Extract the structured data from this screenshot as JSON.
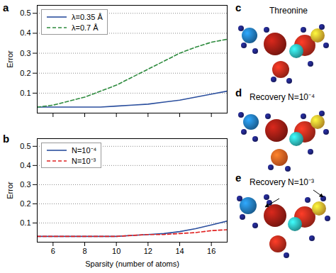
{
  "chart_data": [
    {
      "type": "line",
      "panel": "a",
      "y_label": "Error",
      "x": [
        5,
        6,
        7,
        8,
        9,
        10,
        11,
        12,
        13,
        14,
        15,
        16,
        17
      ],
      "series": [
        {
          "name": "λ=0.35 Å",
          "color": "#2b4f9e",
          "line_style": "solid",
          "values": [
            0.03,
            0.03,
            0.03,
            0.03,
            0.03,
            0.035,
            0.04,
            0.045,
            0.055,
            0.065,
            0.08,
            0.095,
            0.11
          ]
        },
        {
          "name": "λ=0.7 Å",
          "color": "#2e8b3e",
          "line_style": "dashed",
          "values": [
            0.03,
            0.04,
            0.06,
            0.08,
            0.11,
            0.14,
            0.18,
            0.22,
            0.26,
            0.3,
            0.33,
            0.355,
            0.37
          ]
        }
      ],
      "xlim": [
        5,
        17
      ],
      "xticks": [
        6,
        8,
        10,
        12,
        14,
        16
      ],
      "ylim": [
        0,
        0.54
      ],
      "yticks": [
        0.1,
        0.2,
        0.3,
        0.4,
        0.5
      ],
      "grid": "y",
      "legend": "top-left",
      "tick_labels": "y"
    },
    {
      "type": "line",
      "panel": "b",
      "y_label": "Error",
      "x_label": "Sparsity (number of atoms)",
      "x": [
        5,
        6,
        7,
        8,
        9,
        10,
        11,
        12,
        13,
        14,
        15,
        16,
        17
      ],
      "series": [
        {
          "name": "N=10⁻⁴",
          "color": "#2b4f9e",
          "line_style": "solid",
          "values": [
            0.03,
            0.03,
            0.03,
            0.03,
            0.03,
            0.03,
            0.035,
            0.04,
            0.045,
            0.055,
            0.07,
            0.09,
            0.11
          ]
        },
        {
          "name": "N=10⁻³",
          "color": "#e02020",
          "line_style": "dashed",
          "values": [
            0.03,
            0.03,
            0.03,
            0.03,
            0.03,
            0.03,
            0.035,
            0.04,
            0.04,
            0.045,
            0.05,
            0.06,
            0.065
          ]
        }
      ],
      "xlim": [
        5,
        17
      ],
      "xticks": [
        6,
        8,
        10,
        12,
        14,
        16
      ],
      "ylim": [
        0,
        0.54
      ],
      "yticks": [
        0.1,
        0.2,
        0.3,
        0.4,
        0.5
      ],
      "grid": "y",
      "legend": "top-left"
    }
  ],
  "molecules": [
    {
      "panel": "c",
      "label": "Threonine"
    },
    {
      "panel": "d",
      "label": "Recovery N=10⁻⁴"
    },
    {
      "panel": "e",
      "label": "Recovery N=10⁻³"
    }
  ]
}
